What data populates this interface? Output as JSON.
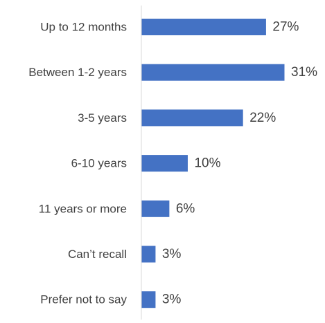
{
  "chart_data": {
    "type": "bar",
    "orientation": "horizontal",
    "categories": [
      "Up to 12 months",
      "Between 1-2 years",
      "3-5 years",
      "6-10 years",
      "11 years or more",
      "Can’t recall",
      "Prefer not to say"
    ],
    "values": [
      27,
      31,
      22,
      10,
      6,
      3,
      3
    ],
    "value_labels": [
      "27%",
      "31%",
      "22%",
      "10%",
      "6%",
      "3%",
      "3%"
    ],
    "unit": "%",
    "xlim": [
      0,
      31
    ],
    "grid": false,
    "legend": "none",
    "colors": {
      "bar": "#4472C4",
      "axis": "#D9D9D9",
      "text": "#404040"
    }
  }
}
